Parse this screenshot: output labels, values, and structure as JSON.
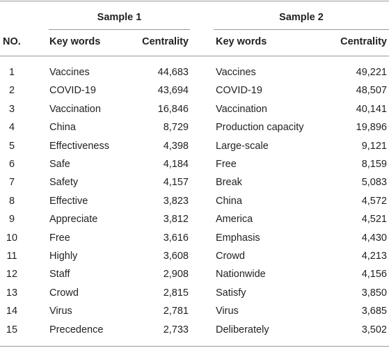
{
  "table": {
    "groups": [
      "Sample 1",
      "Sample 2"
    ],
    "columns": [
      "NO.",
      "Key words",
      "Centrality",
      "Key words",
      "Centrality"
    ],
    "rows": [
      [
        "1",
        "Vaccines",
        "44,683",
        "Vaccines",
        "49,221"
      ],
      [
        "2",
        "COVID-19",
        "43,694",
        "COVID-19",
        "48,507"
      ],
      [
        "3",
        "Vaccination",
        "16,846",
        "Vaccination",
        "40,141"
      ],
      [
        "4",
        "China",
        "8,729",
        "Production capacity",
        "19,896"
      ],
      [
        "5",
        "Effectiveness",
        "4,398",
        "Large-scale",
        "9,121"
      ],
      [
        "6",
        "Safe",
        "4,184",
        "Free",
        "8,159"
      ],
      [
        "7",
        "Safety",
        "4,157",
        "Break",
        "5,083"
      ],
      [
        "8",
        "Effective",
        "3,823",
        "China",
        "4,572"
      ],
      [
        "9",
        "Appreciate",
        "3,812",
        "America",
        "4,521"
      ],
      [
        "10",
        "Free",
        "3,616",
        "Emphasis",
        "4,430"
      ],
      [
        "11",
        "Highly",
        "3,608",
        "Crowd",
        "4,213"
      ],
      [
        "12",
        "Staff",
        "2,908",
        "Nationwide",
        "4,156"
      ],
      [
        "13",
        "Crowd",
        "2,815",
        "Satisfy",
        "3,850"
      ],
      [
        "14",
        "Virus",
        "2,781",
        "Virus",
        "3,685"
      ],
      [
        "15",
        "Precedence",
        "2,733",
        "Deliberately",
        "3,502"
      ]
    ]
  }
}
